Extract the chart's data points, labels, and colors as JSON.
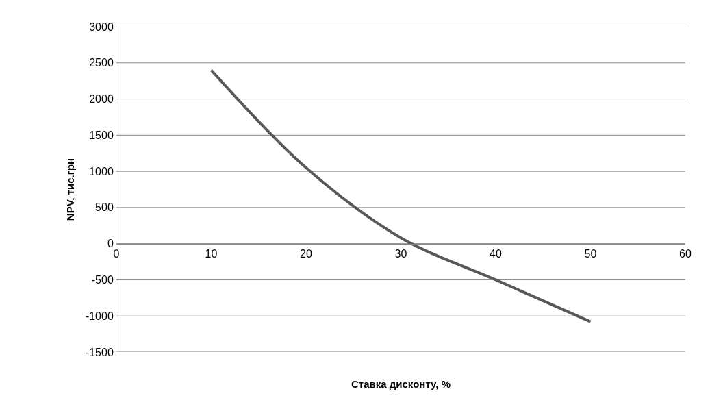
{
  "chart_data": {
    "type": "line",
    "xlabel": "Ставка дисконту, %",
    "ylabel": "NPV, тис.грн",
    "x": [
      10,
      20,
      30,
      40,
      50
    ],
    "series": [
      {
        "color": "#595959",
        "values": [
          2400,
          1050,
          80,
          -500,
          -1080
        ]
      }
    ],
    "xlim": [
      0,
      60
    ],
    "xticks": [
      0,
      10,
      20,
      30,
      40,
      50,
      60
    ],
    "ylim": [
      -1500,
      3000
    ],
    "yticks": [
      -1500,
      -1000,
      -500,
      0,
      500,
      1000,
      1500,
      2000,
      2500,
      3000
    ],
    "grid": "y",
    "marker": "none",
    "line_style": "solid"
  }
}
